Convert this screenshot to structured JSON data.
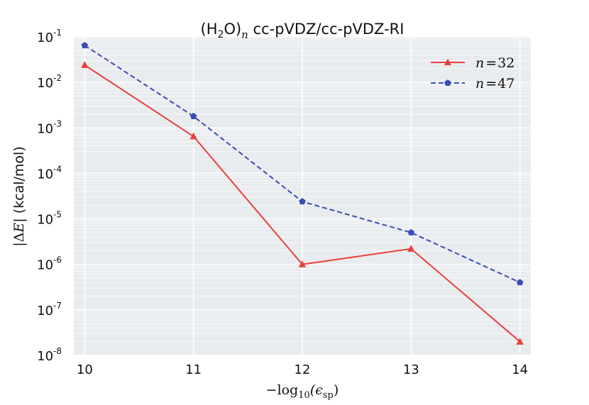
{
  "chart_data": {
    "type": "line",
    "title_parts": {
      "a": "(H",
      "b": "2",
      "c": "O)",
      "d": "n",
      "e": "cc-pVDZ/cc-pVDZ-RI"
    },
    "xlabel_parts": {
      "a": "−log",
      "b": "10",
      "c": "(ϵ",
      "d": "sp",
      "e": ")"
    },
    "ylabel_parts": {
      "a": "|Δ",
      "b": "E",
      "c": "| (kcal/mol)"
    },
    "x": [
      10,
      11,
      12,
      13,
      14
    ],
    "xlim": [
      9.9,
      14.1
    ],
    "ylim_log10": [
      -8,
      -1
    ],
    "y_scale": "log",
    "x_tick_labels": [
      "10",
      "11",
      "12",
      "13",
      "14"
    ],
    "y_ticks": [
      {
        "exp": -1,
        "base": "10",
        "sup": "-1"
      },
      {
        "exp": -2,
        "base": "10",
        "sup": "-2"
      },
      {
        "exp": -3,
        "base": "10",
        "sup": "-3"
      },
      {
        "exp": -4,
        "base": "10",
        "sup": "-4"
      },
      {
        "exp": -5,
        "base": "10",
        "sup": "-5"
      },
      {
        "exp": -6,
        "base": "10",
        "sup": "-6"
      },
      {
        "exp": -7,
        "base": "10",
        "sup": "-7"
      },
      {
        "exp": -8,
        "base": "10",
        "sup": "-8"
      }
    ],
    "grid": true,
    "legend_position": "top-right",
    "series": [
      {
        "name": "n = 32",
        "legend": {
          "n": "n",
          "eq": "=",
          "val": "32"
        },
        "color": "#e8413c",
        "style": "solid",
        "marker": "triangle",
        "values": [
          0.024,
          0.00065,
          1e-06,
          2.2e-06,
          2e-08
        ]
      },
      {
        "name": "n = 47",
        "legend": {
          "n": "n",
          "eq": "=",
          "val": "47"
        },
        "color": "#3b4db3",
        "style": "dashed",
        "marker": "pentagon",
        "values": [
          0.065,
          0.0018,
          2.4e-05,
          5e-06,
          4e-07
        ]
      }
    ],
    "colors": {
      "background": "#e9ecef",
      "grid": "#ffffff",
      "text": "#111111"
    }
  }
}
